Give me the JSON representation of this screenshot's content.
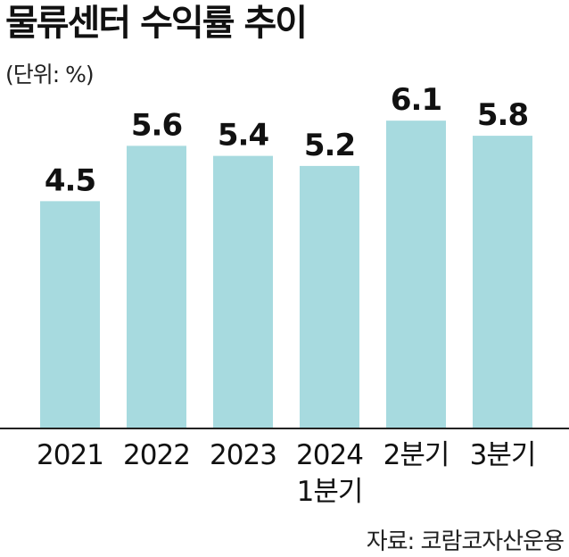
{
  "chart_data": {
    "type": "bar",
    "title": "물류센터 수익률 추이",
    "unit": "(단위: %)",
    "source": "자료: 코람코자산운용",
    "categories": [
      [
        "2021"
      ],
      [
        "2022"
      ],
      [
        "2023"
      ],
      [
        "2024",
        "1분기"
      ],
      [
        "2분기"
      ],
      [
        "3분기"
      ]
    ],
    "values": [
      4.5,
      5.6,
      5.4,
      5.2,
      6.1,
      5.8
    ],
    "value_labels": [
      "4.5",
      "5.6",
      "5.4",
      "5.2",
      "6.1",
      "5.8"
    ],
    "ylim": [
      0,
      6.6
    ],
    "grid": false,
    "bar_color": "#a7dadf",
    "axis_color": "#222222"
  }
}
